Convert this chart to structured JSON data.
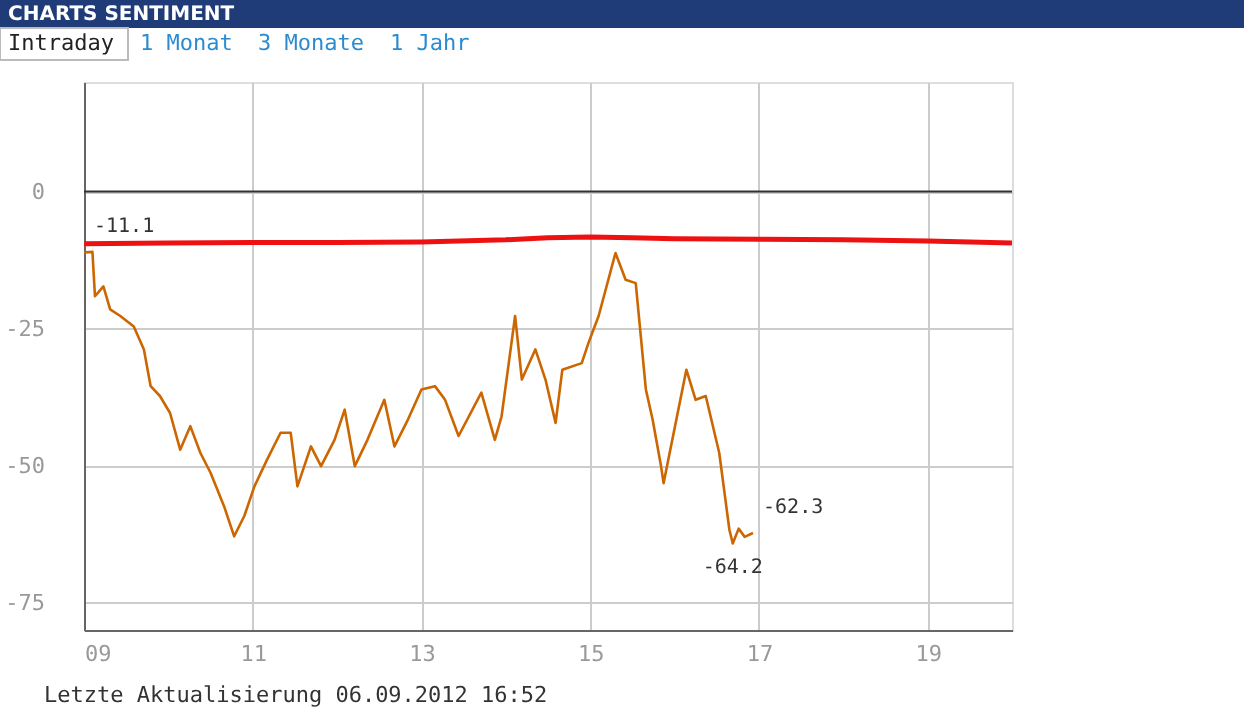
{
  "chart_data": {
    "type": "line",
    "title": "CHARTS SENTIMENT",
    "xlim": [
      9,
      20
    ],
    "xticks": [
      {
        "value": 9,
        "label": "09"
      },
      11,
      13,
      15,
      17,
      19
    ],
    "ylim": [
      -80,
      20
    ],
    "yticks": [
      0,
      -25,
      -50,
      -75
    ],
    "grid": true,
    "marker": "none",
    "line_style": "solid",
    "ref_lines": [
      {
        "axis": "y",
        "value": 0,
        "label": null,
        "color": "#333333"
      }
    ],
    "series": [
      {
        "color": "#ee1111",
        "x": [
          9.0,
          10.0,
          11.0,
          12.0,
          13.0,
          14.0,
          14.5,
          15.0,
          15.5,
          16.0,
          17.0,
          18.0,
          19.0,
          20.0
        ],
        "values": [
          -9.5,
          -9.4,
          -9.3,
          -9.3,
          -9.2,
          -8.8,
          -8.4,
          -8.3,
          -8.4,
          -8.6,
          -8.7,
          -8.8,
          -9.0,
          -9.4
        ]
      },
      {
        "color": "#cc6600",
        "x": [
          9.0,
          9.1,
          9.13,
          9.23,
          9.31,
          9.43,
          9.59,
          9.71,
          9.79,
          9.9,
          10.02,
          10.14,
          10.26,
          10.38,
          10.5,
          10.66,
          10.78,
          10.9,
          11.02,
          11.17,
          11.33,
          11.45,
          11.53,
          11.69,
          11.81,
          11.97,
          12.09,
          12.21,
          12.36,
          12.56,
          12.68,
          12.84,
          13.0,
          13.16,
          13.28,
          13.44,
          13.71,
          13.87,
          13.95,
          14.11,
          14.19,
          14.35,
          14.47,
          14.59,
          14.67,
          14.9,
          14.98,
          15.1,
          15.3,
          15.42,
          15.54,
          15.66,
          15.74,
          15.84,
          15.87,
          16.14,
          16.25,
          16.37,
          16.53,
          16.65,
          16.69,
          16.76,
          16.83,
          16.93
        ],
        "values": [
          -11.1,
          -11.0,
          -19.1,
          -17.3,
          -21.5,
          -22.7,
          -24.6,
          -28.8,
          -35.5,
          -37.3,
          -40.4,
          -47.1,
          -42.8,
          -47.7,
          -51.3,
          -57.4,
          -62.9,
          -59.2,
          -53.8,
          -48.9,
          -44.0,
          -44.0,
          -53.8,
          -46.5,
          -50.1,
          -45.3,
          -39.8,
          -50.1,
          -45.3,
          -38.0,
          -46.5,
          -41.6,
          -36.1,
          -35.5,
          -38.0,
          -44.6,
          -36.7,
          -45.3,
          -41.0,
          -22.7,
          -34.3,
          -28.8,
          -34.3,
          -42.2,
          -32.5,
          -31.3,
          -27.6,
          -22.7,
          -11.2,
          -16.1,
          -16.7,
          -36.1,
          -41.6,
          -50.1,
          -53.2,
          -32.5,
          -38.0,
          -37.3,
          -47.7,
          -61.7,
          -64.2,
          -61.5,
          -63.0,
          -62.3
        ]
      }
    ],
    "annotations": [
      "Intraday",
      "1 Monat",
      "3 Monate",
      "1 Jahr",
      "Letzte Aktualisierung 06.09.2012 16:52",
      {
        "text": "-11.1",
        "x": 9.0,
        "y": -11.1
      },
      {
        "text": "-64.2",
        "x": 16.69,
        "y": -64.2
      },
      {
        "text": "-62.3",
        "x": 16.93,
        "y": -62.3
      }
    ]
  }
}
